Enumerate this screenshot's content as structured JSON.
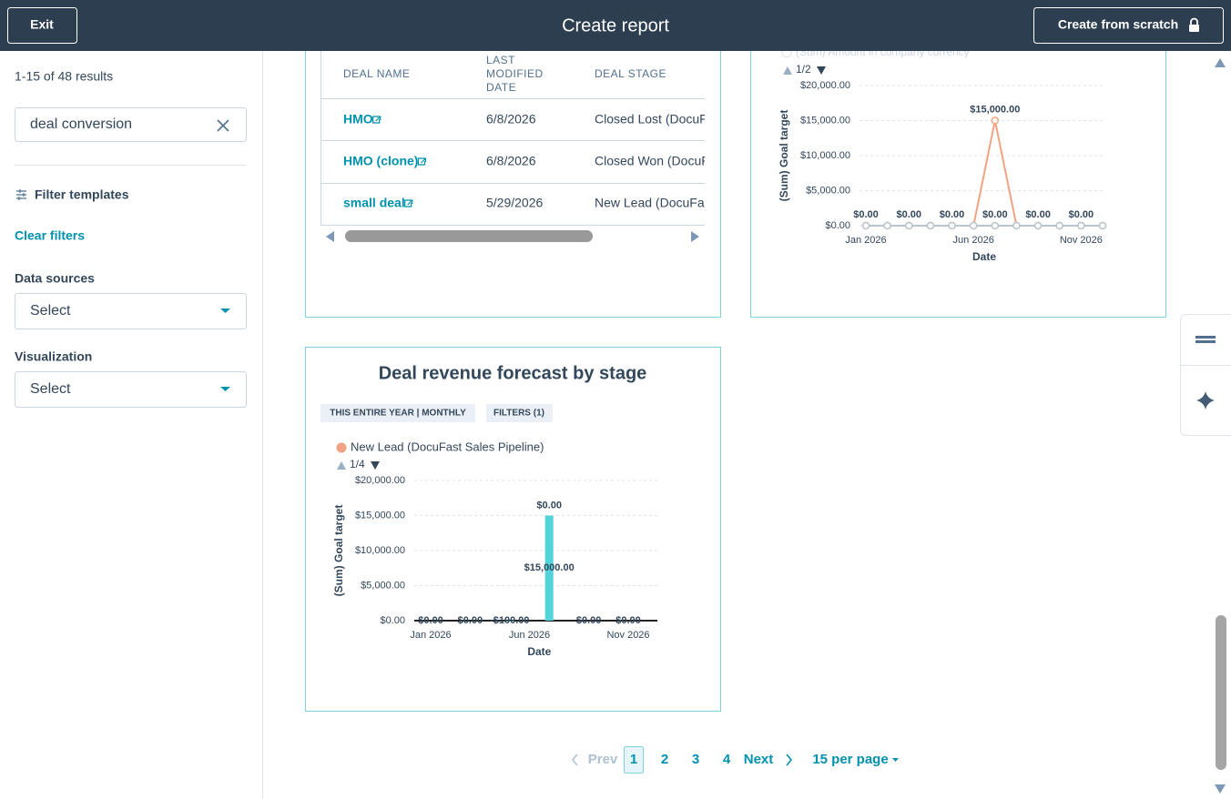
{
  "header": {
    "exit": "Exit",
    "title": "Create report",
    "create": "Create from scratch"
  },
  "sidebar": {
    "results": "1-15 of 48 results",
    "search": "deal conversion",
    "filter_templates": "Filter templates",
    "clear_filters": "Clear filters",
    "data_sources": {
      "label": "Data sources",
      "value": "Select"
    },
    "visualization": {
      "label": "Visualization",
      "value": "Select"
    }
  },
  "deals_table": {
    "columns": [
      "DEAL NAME",
      "LAST MODIFIED DATE",
      "DEAL STAGE"
    ],
    "rows": [
      [
        "HMO",
        "6/8/2026",
        "Closed Lost (DocuFast Sales Pipeline)"
      ],
      [
        "HMO (clone)",
        "6/8/2026",
        "Closed Won (DocuFast Sales Pipeline)"
      ],
      [
        "small deal",
        "5/29/2026",
        "New Lead (DocuFast Sales Pipeline)"
      ]
    ]
  },
  "goal_chart": {
    "type": "line",
    "pager": "1/2",
    "y_label": "(Sum) Goal target",
    "x_label": "Date",
    "categories": [
      "Jan 2026",
      null,
      null,
      null,
      null,
      "Jun 2026",
      null,
      null,
      null,
      null,
      "Nov 2026",
      null
    ],
    "ylim": [
      0,
      20000
    ],
    "yticks": [
      {
        "value": 0,
        "label": "$0.00"
      },
      {
        "value": 5000,
        "label": "$5,000.00"
      },
      {
        "value": 10000,
        "label": "$10,000.00"
      },
      {
        "value": 15000,
        "label": "$15,000.00"
      },
      {
        "value": 20000,
        "label": "$20,000.00"
      }
    ],
    "grid": true,
    "series": [
      {
        "color": "#f2a383",
        "values": [
          0,
          0,
          0,
          0,
          0,
          0,
          15000,
          0,
          0,
          0,
          0,
          0
        ],
        "value_labels": [
          null,
          null,
          null,
          null,
          null,
          null,
          "$15,000.00",
          null,
          null,
          null,
          null,
          null
        ]
      },
      {
        "name": "(Sum) Amount in company currency",
        "color": "#b9c3cd",
        "values": [
          0,
          0,
          0,
          0,
          0,
          0,
          0,
          0,
          0,
          0,
          0,
          0
        ],
        "value_labels": [
          "$0.00",
          null,
          "$0.00",
          null,
          "$0.00",
          null,
          "$0.00",
          null,
          "$0.00",
          null,
          "$0.00",
          null
        ]
      }
    ]
  },
  "forecast_chart": {
    "type": "bar",
    "title": "Deal revenue forecast by stage",
    "chips": [
      "THIS ENTIRE YEAR | MONTHLY",
      "FILTERS (1)"
    ],
    "pager": "1/4",
    "y_label": "(Sum) Goal target",
    "x_label": "Date",
    "categories": [
      "Jan 2026",
      null,
      null,
      null,
      null,
      "Jun 2026",
      null,
      null,
      null,
      null,
      "Nov 2026",
      null
    ],
    "ylim": [
      0,
      20000
    ],
    "yticks": [
      {
        "value": 0,
        "label": "$0.00"
      },
      {
        "value": 5000,
        "label": "$5,000.00"
      },
      {
        "value": 10000,
        "label": "$10,000.00"
      },
      {
        "value": 15000,
        "label": "$15,000.00"
      },
      {
        "value": 20000,
        "label": "$20,000.00"
      }
    ],
    "grid": true,
    "series": [
      {
        "name": "New Lead (DocuFast Sales Pipeline)",
        "color": "#f2a383",
        "values": [
          0,
          0,
          0,
          0,
          0,
          0,
          0,
          0,
          0,
          0,
          0,
          0
        ],
        "value_labels": [
          null,
          null,
          null,
          null,
          null,
          null,
          "$0.00",
          null,
          null,
          null,
          null,
          null
        ]
      },
      {
        "color": "#51d3d9",
        "values": [
          0,
          0,
          0,
          0,
          -100,
          0,
          15000,
          0,
          0,
          0,
          0,
          0
        ],
        "value_labels": [
          "$0.00",
          null,
          "$0.00",
          null,
          "-$100.00",
          null,
          "$15,000.00",
          null,
          "$0.00",
          null,
          "$0.00",
          null
        ]
      }
    ]
  },
  "pagination": {
    "prev": "Prev",
    "pages": [
      "1",
      "2",
      "3",
      "4"
    ],
    "next": "Next",
    "per_page": "15 per page"
  }
}
